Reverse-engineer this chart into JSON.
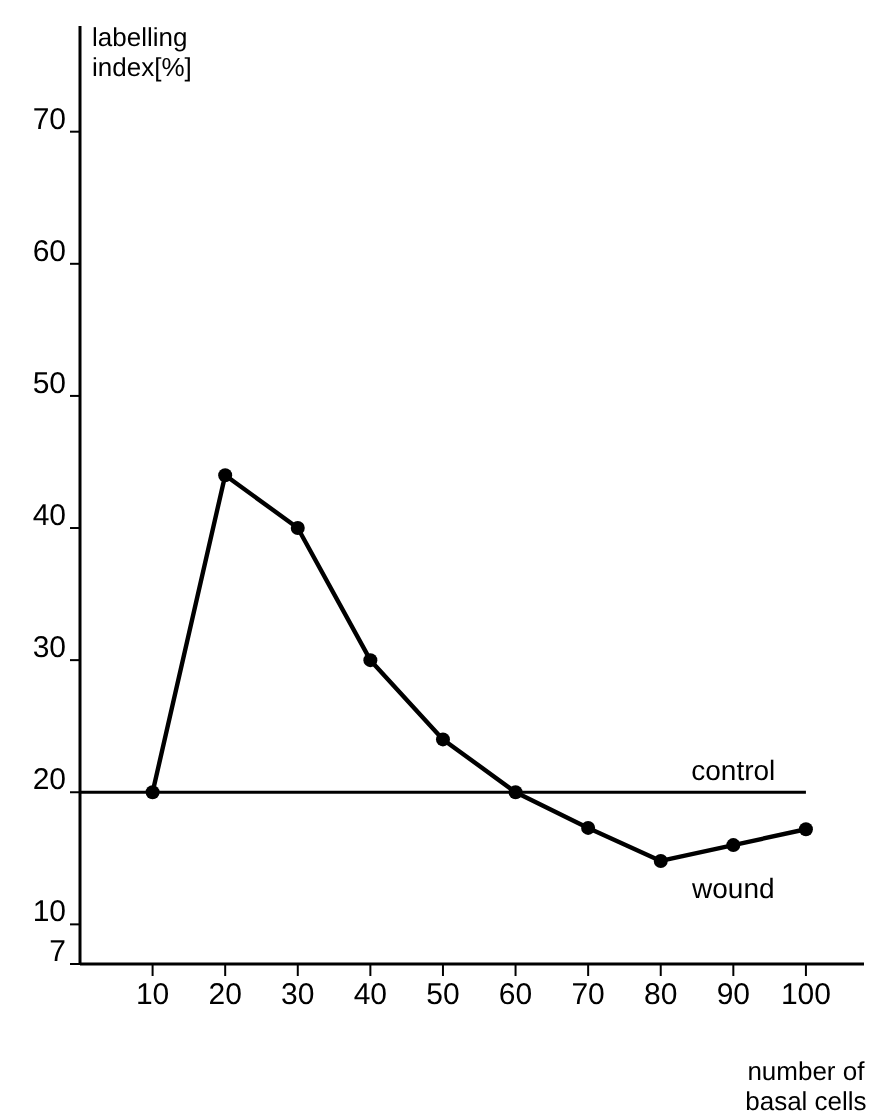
{
  "chart_data": {
    "type": "line",
    "ylabel": "labelling index[%]",
    "xlabel": "number of basal cells",
    "x": [
      10,
      20,
      30,
      40,
      50,
      60,
      70,
      80,
      90,
      100
    ],
    "series": [
      {
        "color": "#000000",
        "values": [
          20,
          44,
          40,
          30,
          24,
          20,
          17.3,
          14.8,
          16,
          17.2
        ]
      }
    ],
    "xlim": [
      0,
      108
    ],
    "xticks": [
      10,
      20,
      30,
      40,
      50,
      60,
      70,
      80,
      90,
      100
    ],
    "ylim": [
      7,
      78
    ],
    "yticks": [
      7,
      10,
      20,
      30,
      40,
      50,
      60,
      70
    ],
    "ref_lines": [
      {
        "axis": "y",
        "value": 20,
        "label": "control",
        "color": "#000000"
      }
    ],
    "annotations": [
      "wound"
    ],
    "marker": "circle",
    "line_style": "solid",
    "grid": false
  }
}
